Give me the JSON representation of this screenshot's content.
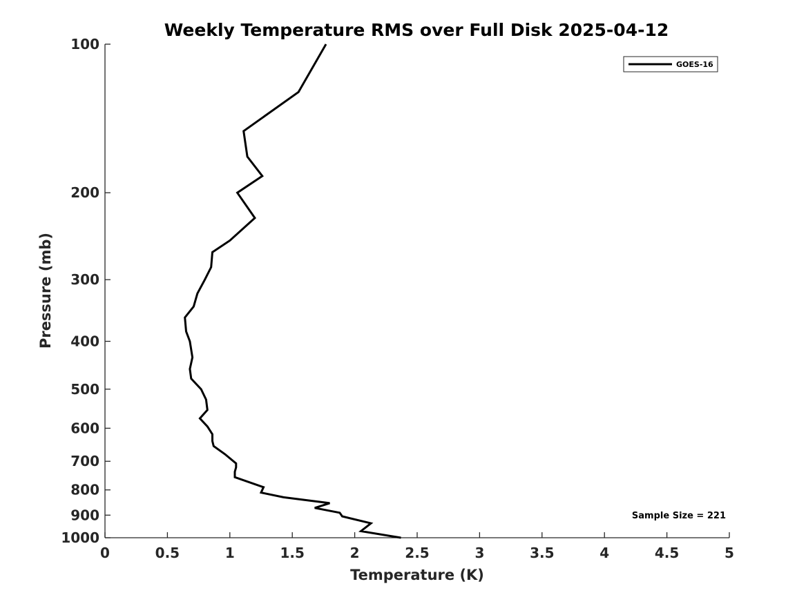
{
  "chart_data": {
    "type": "line",
    "title": "Weekly Temperature RMS over Full Disk 2025-04-12",
    "xlabel": "Temperature (K)",
    "ylabel": "Pressure (mb)",
    "xlim": [
      0,
      5
    ],
    "ylim": [
      100,
      1000
    ],
    "y_scale": "log",
    "y_reversed": true,
    "x_ticks": [
      0,
      0.5,
      1,
      1.5,
      2,
      2.5,
      3,
      3.5,
      4,
      4.5,
      5
    ],
    "x_tick_labels": [
      "0",
      "0.5",
      "1",
      "1.5",
      "2",
      "2.5",
      "3",
      "3.5",
      "4",
      "4.5",
      "5"
    ],
    "y_ticks": [
      100,
      200,
      300,
      400,
      500,
      600,
      700,
      800,
      900,
      1000
    ],
    "y_tick_labels": [
      "100",
      "200",
      "300",
      "400",
      "500",
      "600",
      "700",
      "800",
      "900",
      "1000"
    ],
    "grid": false,
    "legend_position": "top-right",
    "annotation": "Sample Size = 221",
    "series": [
      {
        "name": "GOES-16",
        "color": "#000000",
        "points": [
          [
            1.77,
            100
          ],
          [
            1.55,
            125
          ],
          [
            1.11,
            150
          ],
          [
            1.14,
            169
          ],
          [
            1.26,
            185
          ],
          [
            1.06,
            200
          ],
          [
            1.2,
            225
          ],
          [
            1.0,
            250
          ],
          [
            0.86,
            264
          ],
          [
            0.85,
            283
          ],
          [
            0.8,
            300
          ],
          [
            0.74,
            320
          ],
          [
            0.71,
            340
          ],
          [
            0.64,
            358
          ],
          [
            0.65,
            382
          ],
          [
            0.68,
            400
          ],
          [
            0.7,
            431
          ],
          [
            0.68,
            455
          ],
          [
            0.69,
            476
          ],
          [
            0.77,
            500
          ],
          [
            0.81,
            525
          ],
          [
            0.82,
            551
          ],
          [
            0.76,
            573
          ],
          [
            0.82,
            595
          ],
          [
            0.86,
            617
          ],
          [
            0.86,
            637
          ],
          [
            0.87,
            652
          ],
          [
            0.96,
            677
          ],
          [
            1.05,
            707
          ],
          [
            1.05,
            720
          ],
          [
            1.04,
            735
          ],
          [
            1.04,
            754
          ],
          [
            1.27,
            790
          ],
          [
            1.25,
            810
          ],
          [
            1.43,
            828
          ],
          [
            1.8,
            851
          ],
          [
            1.68,
            870
          ],
          [
            1.88,
            890
          ],
          [
            1.9,
            905
          ],
          [
            2.13,
            935
          ],
          [
            2.05,
            970
          ],
          [
            2.37,
            1000
          ]
        ]
      }
    ]
  }
}
